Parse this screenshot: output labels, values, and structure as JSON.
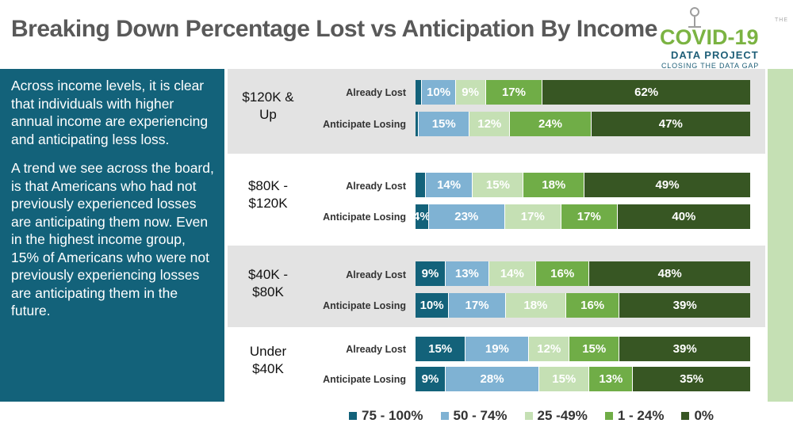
{
  "title": "Breaking Down Percentage Lost vs Anticipation By Income",
  "logo": {
    "the": "THE",
    "main": "COVID-19",
    "sub": "DATA PROJECT",
    "tag": "CLOSING THE DATA GAP"
  },
  "sidebar": {
    "paragraph1": "Across income levels, it is clear that individuals with higher annual income are experiencing and anticipating less loss.",
    "paragraph2": "A trend we see across the board, is that Americans who had not previously experienced losses are anticipating them now. Even in the highest income group, 15% of Americans who were not previously experiencing losses are anticipating them in the future."
  },
  "colors": {
    "c75_100": "#13627a",
    "c50_74": "#7fb2d3",
    "c25_49": "#c5e0b4",
    "c1_24": "#70ad47",
    "c0": "#375623",
    "sidebar": "#13627a",
    "band_grey": "#e3e3e3",
    "strip": "#c5e0b4"
  },
  "chart_data": {
    "type": "bar",
    "orientation": "horizontal",
    "stacked": "100%",
    "legend_position": "bottom",
    "legend": [
      "75 - 100%",
      "50 - 74%",
      "25 -49%",
      "1 - 24%",
      "0%"
    ],
    "groups": [
      {
        "label": "$120K & Up",
        "rows": [
          {
            "label": "Already Lost",
            "values": [
              2,
              10,
              9,
              17,
              62
            ],
            "labels": [
              "",
              "10%",
              "9%",
              "17%",
              "62%"
            ]
          },
          {
            "label": "Anticipate Losing",
            "values": [
              1,
              15,
              12,
              24,
              47
            ],
            "labels": [
              "",
              "15%",
              "12%",
              "24%",
              "47%"
            ]
          }
        ]
      },
      {
        "label": "$80K - $120K",
        "rows": [
          {
            "label": "Already Lost",
            "values": [
              3,
              14,
              15,
              18,
              49
            ],
            "labels": [
              "",
              "14%",
              "15%",
              "18%",
              "49%"
            ]
          },
          {
            "label": "Anticipate Losing",
            "values": [
              4,
              23,
              17,
              17,
              40
            ],
            "labels": [
              "4%",
              "23%",
              "17%",
              "17%",
              "40%"
            ]
          }
        ]
      },
      {
        "label": "$40K - $80K",
        "rows": [
          {
            "label": "Already Lost",
            "values": [
              9,
              13,
              14,
              16,
              48
            ],
            "labels": [
              "9%",
              "13%",
              "14%",
              "16%",
              "48%"
            ]
          },
          {
            "label": "Anticipate Losing",
            "values": [
              10,
              17,
              18,
              16,
              39
            ],
            "labels": [
              "10%",
              "17%",
              "18%",
              "16%",
              "39%"
            ]
          }
        ]
      },
      {
        "label": "Under $40K",
        "rows": [
          {
            "label": "Already Lost",
            "values": [
              15,
              19,
              12,
              15,
              39
            ],
            "labels": [
              "15%",
              "19%",
              "12%",
              "15%",
              "39%"
            ]
          },
          {
            "label": "Anticipate Losing",
            "values": [
              9,
              28,
              15,
              13,
              35
            ],
            "labels": [
              "9%",
              "28%",
              "15%",
              "13%",
              "35%"
            ]
          }
        ]
      }
    ]
  }
}
